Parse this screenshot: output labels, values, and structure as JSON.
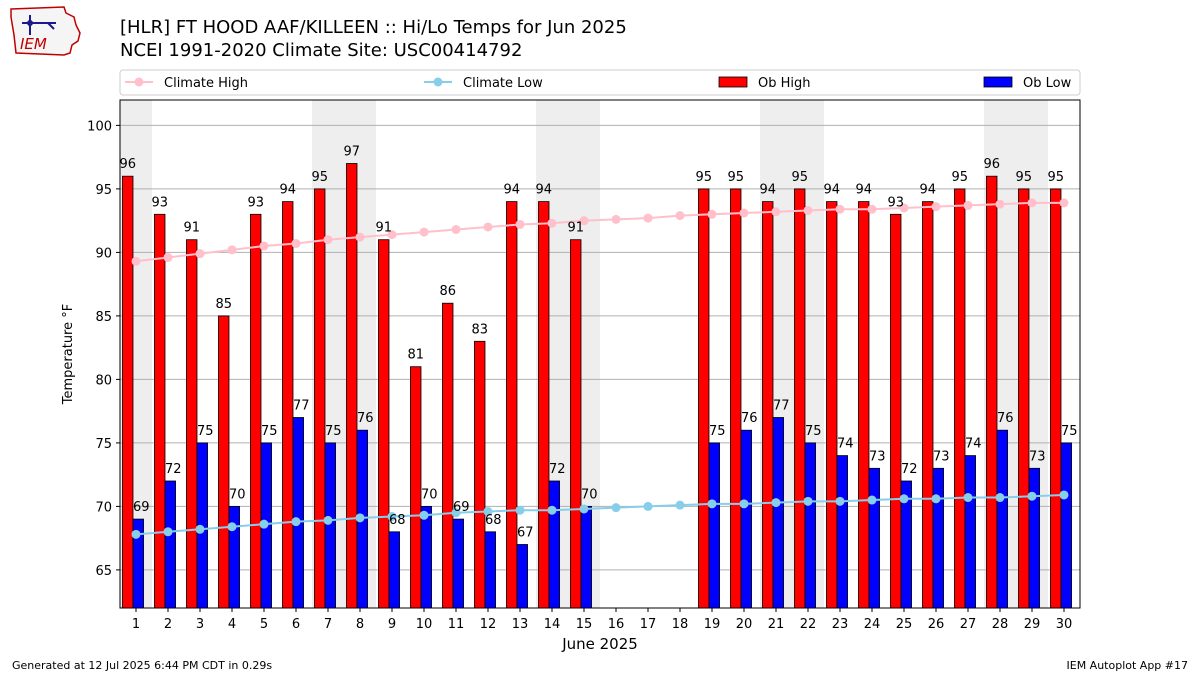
{
  "header": {
    "title_line1": "[HLR] FT HOOD AAF/KILLEEN :: Hi/Lo Temps for Jun 2025",
    "title_line2": "NCEI 1991-2020 Climate Site: USC00414792",
    "logo_text": "IEM"
  },
  "footer": {
    "generated": "Generated at 12 Jul 2025 6:44 PM CDT in 0.29s",
    "app": "IEM Autoplot App #17"
  },
  "colors": {
    "ob_high": "#ff0000",
    "ob_low": "#0000ff",
    "climate_high": "#ffc0cb",
    "climate_low": "#87ceeb",
    "weekend_shade": "#eeeeee",
    "grid": "#b0b0b0"
  },
  "chart_data": {
    "type": "bar",
    "xlabel": "June 2025",
    "ylabel": "Temperature °F",
    "ylim": [
      62,
      102
    ],
    "yticks": [
      65,
      70,
      75,
      80,
      85,
      90,
      95,
      100
    ],
    "grid": "horizontal",
    "legend_position": "top",
    "categories": [
      "1",
      "2",
      "3",
      "4",
      "5",
      "6",
      "7",
      "8",
      "9",
      "10",
      "11",
      "12",
      "13",
      "14",
      "15",
      "16",
      "17",
      "18",
      "19",
      "20",
      "21",
      "22",
      "23",
      "24",
      "25",
      "26",
      "27",
      "28",
      "29",
      "30"
    ],
    "shaded_days": [
      1,
      7,
      8,
      14,
      15,
      21,
      22,
      28,
      29
    ],
    "series": [
      {
        "name": "Ob High",
        "kind": "bar",
        "values": [
          96,
          93,
          91,
          85,
          93,
          94,
          95,
          97,
          91,
          81,
          86,
          83,
          94,
          94,
          91,
          null,
          null,
          null,
          95,
          95,
          94,
          95,
          94,
          94,
          93,
          94,
          95,
          96,
          95,
          95
        ]
      },
      {
        "name": "Ob Low",
        "kind": "bar",
        "values": [
          69,
          72,
          75,
          70,
          75,
          77,
          75,
          76,
          68,
          70,
          69,
          68,
          67,
          72,
          70,
          null,
          null,
          null,
          75,
          76,
          77,
          75,
          74,
          73,
          72,
          73,
          74,
          76,
          73,
          75
        ]
      },
      {
        "name": "Climate High",
        "kind": "line",
        "values": [
          89.3,
          89.6,
          89.9,
          90.2,
          90.5,
          90.7,
          91.0,
          91.2,
          91.4,
          91.6,
          91.8,
          92.0,
          92.2,
          92.3,
          92.5,
          92.6,
          92.7,
          92.9,
          93.0,
          93.1,
          93.2,
          93.3,
          93.4,
          93.4,
          93.5,
          93.6,
          93.7,
          93.8,
          93.9,
          93.9
        ]
      },
      {
        "name": "Climate Low",
        "kind": "line",
        "values": [
          67.8,
          68.0,
          68.2,
          68.4,
          68.6,
          68.8,
          68.9,
          69.1,
          69.2,
          69.3,
          69.5,
          69.6,
          69.7,
          69.7,
          69.8,
          69.9,
          70.0,
          70.1,
          70.2,
          70.2,
          70.3,
          70.4,
          70.4,
          70.5,
          70.6,
          70.6,
          70.7,
          70.7,
          70.8,
          70.9
        ]
      }
    ],
    "legend": [
      {
        "label": "Climate High"
      },
      {
        "label": "Climate Low"
      },
      {
        "label": "Ob High"
      },
      {
        "label": "Ob Low"
      }
    ]
  }
}
